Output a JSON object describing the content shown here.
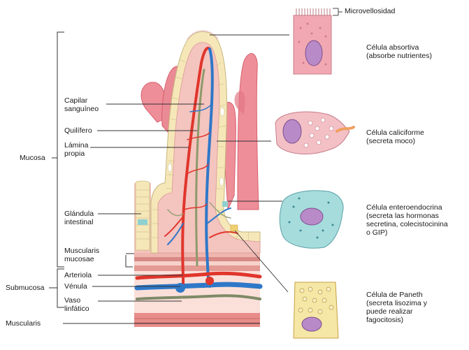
{
  "labels": {
    "microvellosidad": "Microvellosidad",
    "celula_absortiva": [
      "Célula absortiva",
      "(absorbe nutrientes)"
    ],
    "celula_caliciforme": [
      "Célula caliciforme",
      "(secreta moco)"
    ],
    "celula_enteroendocrina": [
      "Célula enteroendocrina",
      "(secreta las hormonas",
      "secretina, colecistocinina",
      "o GIP)"
    ],
    "celula_paneth": [
      "Célula de Paneth",
      "(secreta lisozima y",
      "puede realizar",
      "fagocitosis)"
    ],
    "capilar": [
      "Capilar",
      "sanguíneo"
    ],
    "quilifero": "Quilífero",
    "lamina_propia": [
      "Lámina",
      "propia"
    ],
    "glandula": [
      "Glándula",
      "intestinal"
    ],
    "muscularis_mucosae": [
      "Muscularis",
      "mucosae"
    ],
    "arteriola": "Arteriola",
    "venula": "Vénula",
    "vaso_linfatico": [
      "Vaso",
      "linfático"
    ],
    "mucosa": "Mucosa",
    "submucosa": "Submucosa",
    "muscularis": "Muscularis"
  },
  "colors": {
    "tissue": "#f4c4bf",
    "villus_pink": "#ee8e98",
    "villus_dark": "#d9606e",
    "epithelium": "#f6e7b8",
    "artery": "#e0362c",
    "vein": "#2f78c8",
    "lymph": "#9aa27a",
    "absorptive_cell": "#f2a8b2",
    "goblet_cell": "#f3c0c6",
    "enteroendocrine_cell": "#a6dcdc",
    "paneth_cell": "#f5e7a6",
    "nucleus": "#b98ac8"
  }
}
